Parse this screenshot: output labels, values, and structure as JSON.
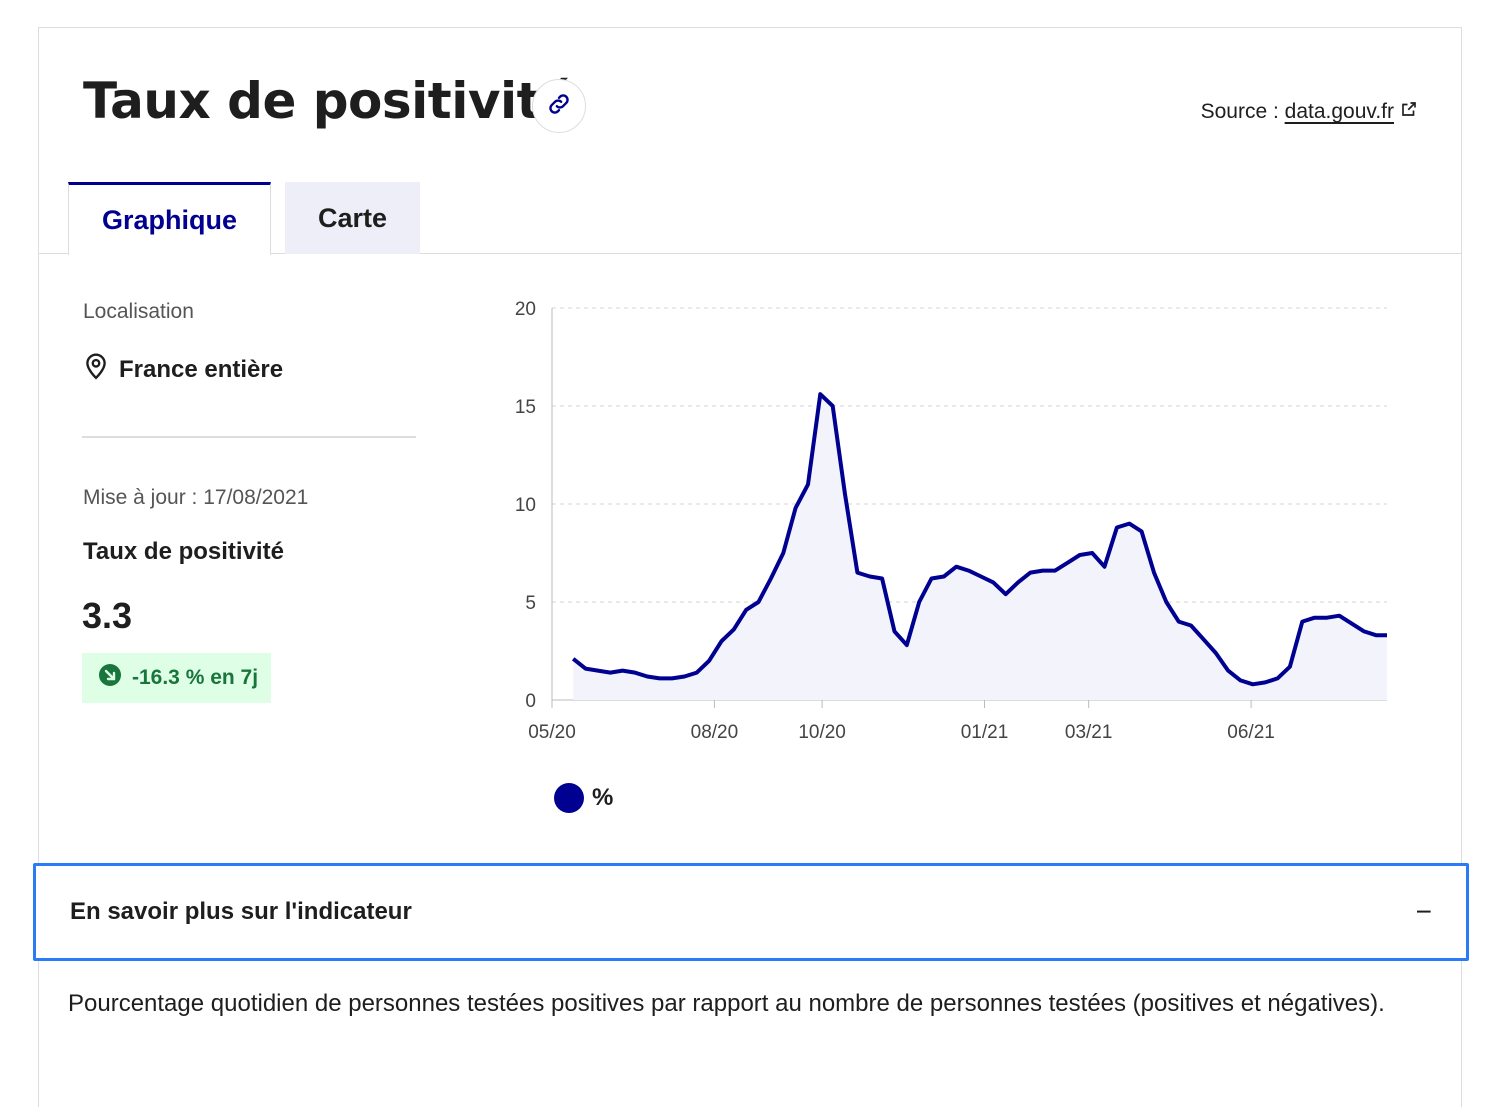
{
  "header": {
    "title": "Taux de positivité",
    "source_prefix": "Source : ",
    "source_link": "data.gouv.fr"
  },
  "tabs": [
    {
      "label": "Graphique",
      "active": true
    },
    {
      "label": "Carte",
      "active": false
    }
  ],
  "sidebar": {
    "localisation_label": "Localisation",
    "localisation_value": "France entière",
    "updated": "Mise à jour : 17/08/2021",
    "indicator_name": "Taux de positivité",
    "indicator_value": "3.3",
    "trend": "-16.3 % en 7j"
  },
  "legend": {
    "label": "%"
  },
  "accordion": {
    "title": "En savoir plus sur l'indicateur",
    "toggle": "−",
    "description": "Pourcentage quotidien de personnes testées positives par rapport au nombre de personnes testées (positives et négatives)."
  },
  "colors": {
    "accent": "#000091",
    "trend_bg": "#dffee6",
    "trend_fg": "#18753c",
    "focus": "#2a7bf6"
  },
  "icons": {
    "link": "link-icon",
    "external": "external-link-icon",
    "location": "location-pin-icon",
    "trend": "arrow-down-right-icon"
  },
  "chart_data": {
    "type": "area",
    "title": "",
    "xlabel": "",
    "ylabel": "",
    "ylim": [
      0,
      20
    ],
    "yticks": [
      0,
      5,
      10,
      15,
      20
    ],
    "xticks": [
      "05/20",
      "08/20",
      "10/20",
      "01/21",
      "03/21",
      "06/21"
    ],
    "grid": true,
    "legend_position": "bottom-left",
    "series": [
      {
        "name": "%",
        "color": "#000091",
        "x": [
          "2020-05-13",
          "2020-05-20",
          "2020-05-27",
          "2020-06-03",
          "2020-06-10",
          "2020-06-17",
          "2020-06-24",
          "2020-07-01",
          "2020-07-08",
          "2020-07-15",
          "2020-07-22",
          "2020-07-29",
          "2020-08-05",
          "2020-08-12",
          "2020-08-19",
          "2020-08-26",
          "2020-09-02",
          "2020-09-09",
          "2020-09-16",
          "2020-09-23",
          "2020-09-30",
          "2020-10-07",
          "2020-10-14",
          "2020-10-21",
          "2020-10-28",
          "2020-11-04",
          "2020-11-11",
          "2020-11-18",
          "2020-11-25",
          "2020-12-02",
          "2020-12-09",
          "2020-12-16",
          "2020-12-23",
          "2020-12-30",
          "2021-01-06",
          "2021-01-13",
          "2021-01-20",
          "2021-01-27",
          "2021-02-03",
          "2021-02-10",
          "2021-02-17",
          "2021-02-24",
          "2021-03-03",
          "2021-03-10",
          "2021-03-17",
          "2021-03-24",
          "2021-03-31",
          "2021-04-07",
          "2021-04-14",
          "2021-04-21",
          "2021-04-28",
          "2021-05-05",
          "2021-05-12",
          "2021-05-19",
          "2021-05-26",
          "2021-06-02",
          "2021-06-09",
          "2021-06-16",
          "2021-06-23",
          "2021-06-30",
          "2021-07-07",
          "2021-07-14",
          "2021-07-21",
          "2021-07-28",
          "2021-08-04",
          "2021-08-11",
          "2021-08-17"
        ],
        "values": [
          2.1,
          1.6,
          1.5,
          1.4,
          1.5,
          1.4,
          1.2,
          1.1,
          1.1,
          1.2,
          1.4,
          2.0,
          3.0,
          3.6,
          4.6,
          5.0,
          6.2,
          7.5,
          9.8,
          11.0,
          15.6,
          15.0,
          10.5,
          6.5,
          6.3,
          6.2,
          3.5,
          2.8,
          5.0,
          6.2,
          6.3,
          6.8,
          6.6,
          6.3,
          6.0,
          5.4,
          6.0,
          6.5,
          6.6,
          6.6,
          7.0,
          7.4,
          7.5,
          6.8,
          8.8,
          9.0,
          8.6,
          6.5,
          5.0,
          4.0,
          3.8,
          3.1,
          2.4,
          1.5,
          1.0,
          0.8,
          0.9,
          1.1,
          1.7,
          4.0,
          4.2,
          4.2,
          4.3,
          3.9,
          3.5,
          3.3,
          3.3
        ]
      }
    ]
  }
}
